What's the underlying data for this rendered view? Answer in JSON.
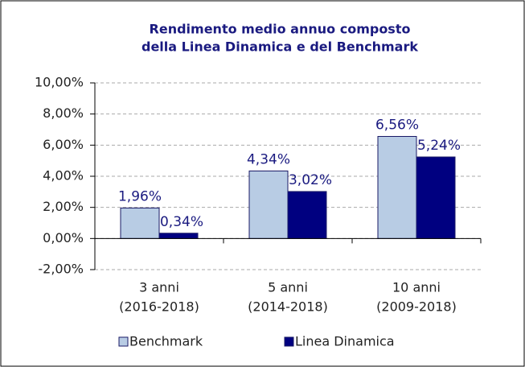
{
  "chart_data": {
    "type": "bar",
    "title": [
      "Rendimento medio annuo composto",
      "della Linea Dinamica e del Benchmark"
    ],
    "categories": [
      [
        "3 anni",
        "(2016-2018)"
      ],
      [
        "5 anni",
        "(2014-2018)"
      ],
      [
        "10 anni",
        "(2009-2018)"
      ]
    ],
    "series": [
      {
        "name": "Benchmark",
        "color": "#b8cce4",
        "values": [
          1.96,
          4.34,
          6.56
        ],
        "value_labels": [
          "1,96%",
          "4,34%",
          "6,56%"
        ]
      },
      {
        "name": "Linea Dinamica",
        "color": "#000080",
        "values": [
          0.34,
          3.02,
          5.24
        ],
        "value_labels": [
          "0,34%",
          "3,02%",
          "5,24%"
        ]
      }
    ],
    "ylim": [
      -2,
      10
    ],
    "yticks": [
      {
        "value": -2,
        "label": "-2,00%"
      },
      {
        "value": 0,
        "label": "0,00%"
      },
      {
        "value": 2,
        "label": "2,00%"
      },
      {
        "value": 4,
        "label": "4,00%"
      },
      {
        "value": 6,
        "label": "6,00%"
      },
      {
        "value": 8,
        "label": "8,00%"
      },
      {
        "value": 10,
        "label": "10,00%"
      }
    ],
    "grid": true
  }
}
